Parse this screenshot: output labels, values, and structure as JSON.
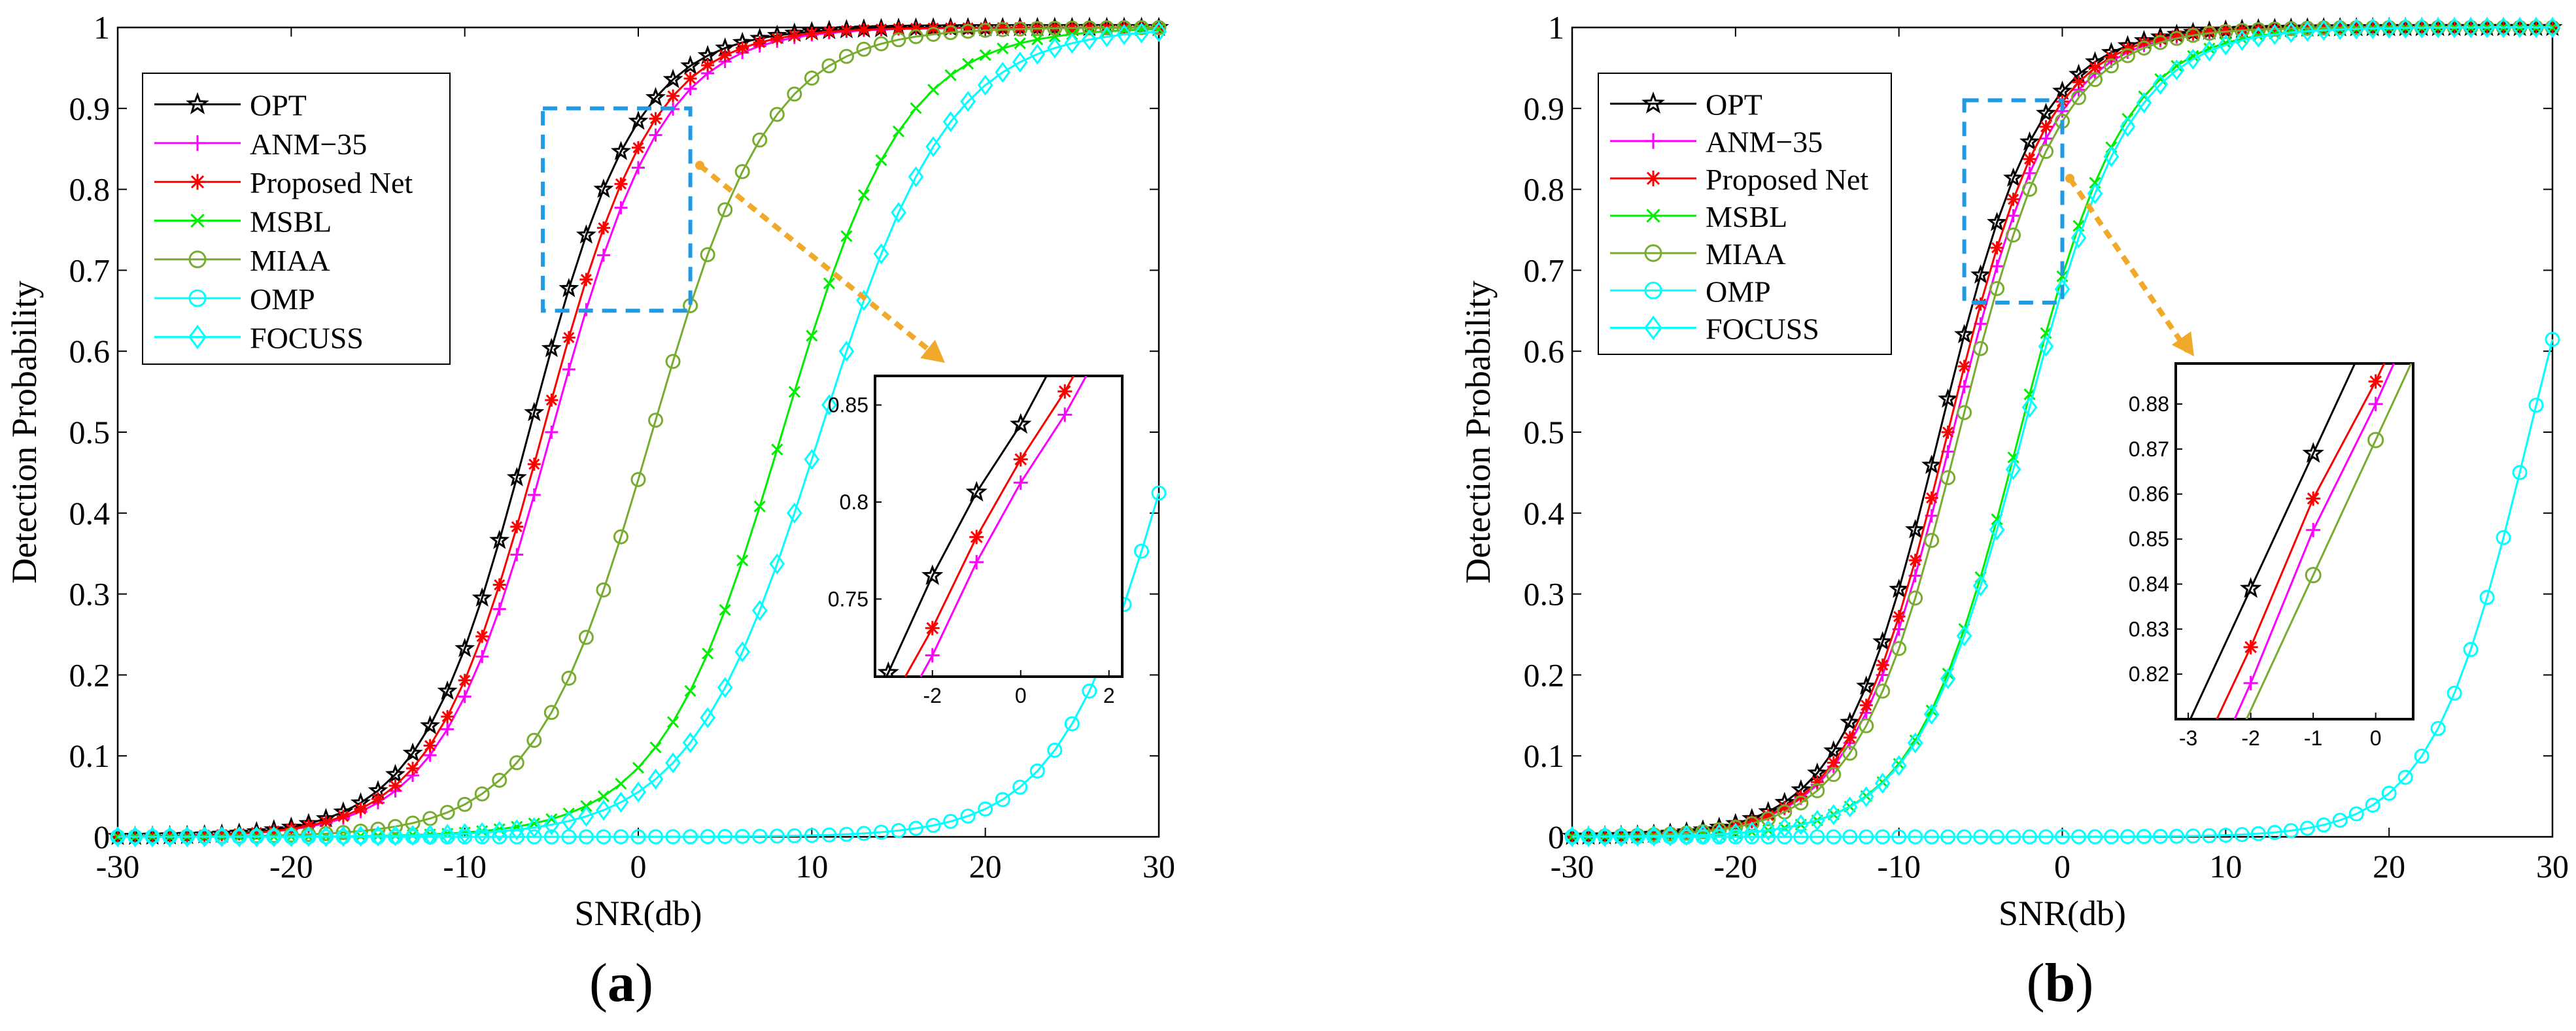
{
  "chart_data": [
    {
      "panel_label": "a",
      "type": "line",
      "xlabel": "SNR(db)",
      "ylabel": "Detection Probability",
      "xlim": [
        -30,
        30
      ],
      "ylim": [
        0,
        1
      ],
      "xticks": [
        "-30",
        "-20",
        "-10",
        "0",
        "10",
        "20",
        "30"
      ],
      "yticks": [
        "0",
        "0.1",
        "0.2",
        "0.3",
        "0.4",
        "0.5",
        "0.6",
        "0.7",
        "0.8",
        "0.9",
        "1"
      ],
      "legend_position": "top-left",
      "grid": false,
      "series": [
        {
          "name": "OPT",
          "color": "#000000",
          "marker": "star",
          "curve": {
            "mid": -6.3,
            "scale": 3.1,
            "max": 1.0
          }
        },
        {
          "name": "ANM−35",
          "color": "#ff00ff",
          "marker": "plus",
          "curve": {
            "mid": -5.0,
            "scale": 3.2,
            "max": 1.0
          }
        },
        {
          "name": "Proposed Net",
          "color": "#ff0000",
          "marker": "asterisk",
          "curve": {
            "mid": -5.5,
            "scale": 3.15,
            "max": 1.0
          }
        },
        {
          "name": "MSBL",
          "color": "#00ee00",
          "marker": "x",
          "curve": {
            "mid": 8.3,
            "scale": 3.5,
            "max": 1.0
          }
        },
        {
          "name": "MIAA",
          "color": "#77ac30",
          "marker": "circle",
          "curve": {
            "mid": 0.8,
            "scale": 3.4,
            "max": 1.0
          }
        },
        {
          "name": "OMP",
          "color": "#00ffff",
          "marker": "circle",
          "curve": {
            "mid": 31.0,
            "scale": 3.3,
            "max": 1.0
          }
        },
        {
          "name": "FOCUSS",
          "color": "#00ffff",
          "marker": "diamond",
          "curve": {
            "mid": 10.5,
            "scale": 3.7,
            "max": 1.0
          }
        }
      ],
      "zoom_box": {
        "x": [
          -5.5,
          3
        ],
        "y": [
          0.65,
          0.9
        ]
      },
      "inset": {
        "xlim": [
          -3.3,
          2.3
        ],
        "ylim": [
          0.71,
          0.865
        ],
        "xticks": [
          "-2",
          "0",
          "2"
        ],
        "yticks": [
          "0.75",
          "0.8",
          "0.85"
        ],
        "points": [
          {
            "series": "OPT",
            "x": [
              -3,
              -2,
              -1,
              0
            ],
            "y": [
              0.712,
              0.762,
              0.805,
              0.84
            ]
          },
          {
            "series": "Proposed Net",
            "x": [
              -2,
              -1,
              0,
              1
            ],
            "y": [
              0.735,
              0.782,
              0.822,
              0.857
            ]
          },
          {
            "series": "ANM−35",
            "x": [
              -2,
              -1,
              0,
              1
            ],
            "y": [
              0.721,
              0.769,
              0.81,
              0.845
            ]
          }
        ]
      }
    },
    {
      "panel_label": "b",
      "type": "line",
      "xlabel": "SNR(db)",
      "ylabel": "Detection Probability",
      "xlim": [
        -30,
        30
      ],
      "ylim": [
        0,
        1
      ],
      "xticks": [
        "-30",
        "-20",
        "-10",
        "0",
        "10",
        "20",
        "30"
      ],
      "yticks": [
        "0",
        "0.1",
        "0.2",
        "0.3",
        "0.4",
        "0.5",
        "0.6",
        "0.7",
        "0.8",
        "0.9",
        "1"
      ],
      "legend_position": "top-left",
      "grid": false,
      "series": [
        {
          "name": "OPT",
          "color": "#000000",
          "marker": "star",
          "curve": {
            "mid": -7.5,
            "scale": 3.05,
            "max": 1.0
          }
        },
        {
          "name": "ANM−35",
          "color": "#ff00ff",
          "marker": "plus",
          "curve": {
            "mid": -6.7,
            "scale": 3.1,
            "max": 1.0
          }
        },
        {
          "name": "Proposed Net",
          "color": "#ff0000",
          "marker": "asterisk",
          "curve": {
            "mid": -7.0,
            "scale": 3.05,
            "max": 1.0
          }
        },
        {
          "name": "MSBL",
          "color": "#00ee00",
          "marker": "x",
          "curve": {
            "mid": -2.6,
            "scale": 3.2,
            "max": 1.0
          }
        },
        {
          "name": "MIAA",
          "color": "#77ac30",
          "marker": "circle",
          "curve": {
            "mid": -6.3,
            "scale": 3.1,
            "max": 1.0
          }
        },
        {
          "name": "OMP",
          "color": "#00ffff",
          "marker": "circle",
          "curve": {
            "mid": 28.6,
            "scale": 3.0,
            "max": 1.0
          }
        },
        {
          "name": "FOCUSS",
          "color": "#00ffff",
          "marker": "diamond",
          "curve": {
            "mid": -2.4,
            "scale": 3.25,
            "max": 1.0
          }
        }
      ],
      "zoom_box": {
        "x": [
          -6,
          0
        ],
        "y": [
          0.66,
          0.91
        ]
      },
      "inset": {
        "xlim": [
          -3.2,
          0.6
        ],
        "ylim": [
          0.81,
          0.889
        ],
        "xticks": [
          "-3",
          "-2",
          "-1",
          "0"
        ],
        "yticks": [
          "0.82",
          "0.83",
          "0.84",
          "0.85",
          "0.86",
          "0.87",
          "0.88"
        ],
        "points": [
          {
            "series": "OPT",
            "x": [
              -2,
              -1
            ],
            "y": [
              0.839,
              0.869
            ]
          },
          {
            "series": "Proposed Net",
            "x": [
              -2,
              -1,
              0
            ],
            "y": [
              0.826,
              0.859,
              0.885
            ]
          },
          {
            "series": "ANM−35",
            "x": [
              -2,
              -1,
              0
            ],
            "y": [
              0.818,
              0.852,
              0.88
            ]
          },
          {
            "series": "MIAA",
            "x": [
              -1,
              0
            ],
            "y": [
              0.842,
              0.872
            ]
          }
        ]
      }
    }
  ]
}
